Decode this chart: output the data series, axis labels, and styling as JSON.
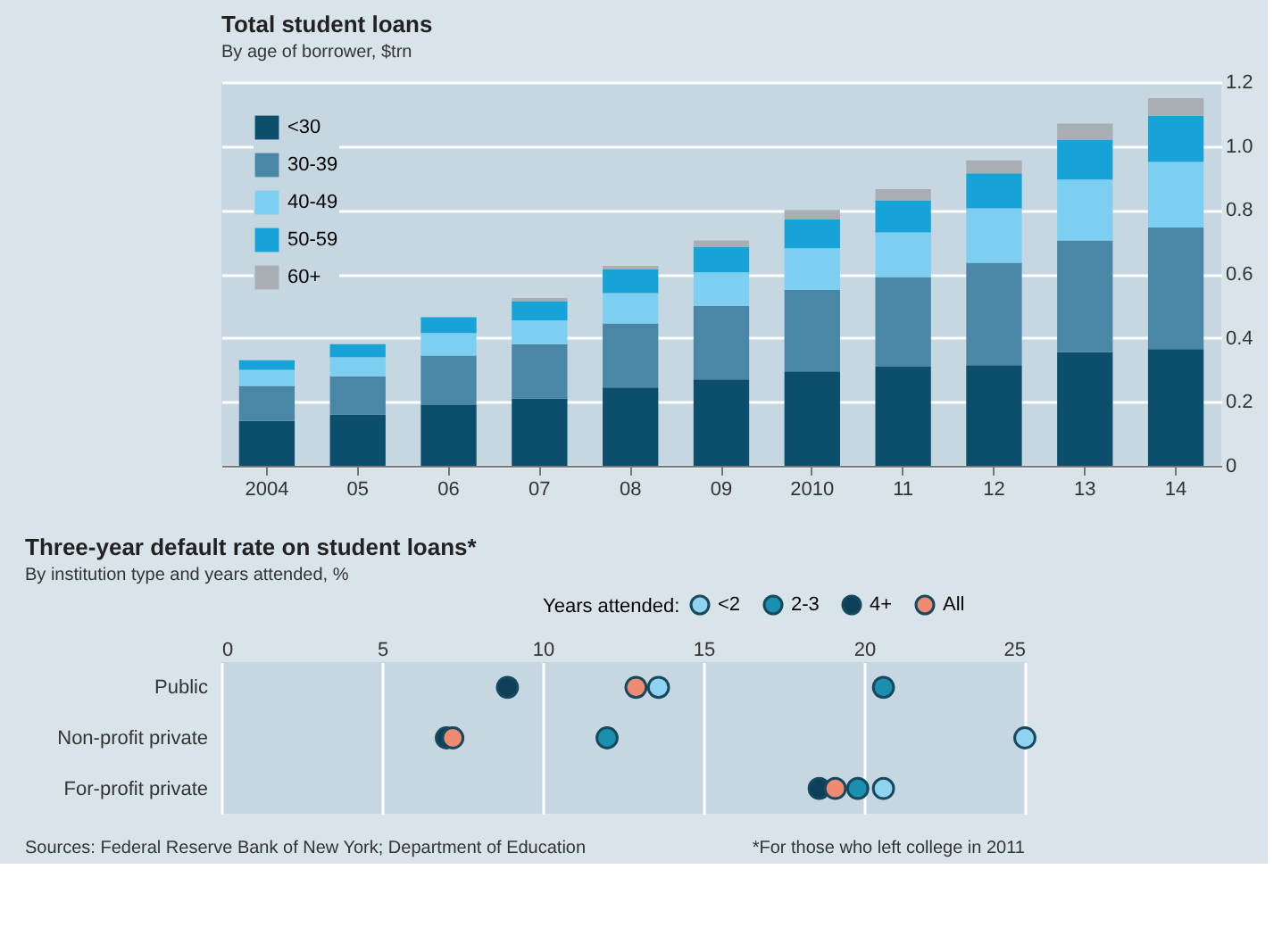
{
  "chart_data": [
    {
      "type": "bar",
      "title": "Total student loans",
      "subtitle": "By age of borrower, $trn",
      "categories": [
        "2004",
        "05",
        "06",
        "07",
        "08",
        "09",
        "2010",
        "11",
        "12",
        "13",
        "14"
      ],
      "stacked": true,
      "series": [
        {
          "name": "<30",
          "color": "#0b4f6c",
          "values": [
            0.14,
            0.16,
            0.19,
            0.21,
            0.245,
            0.27,
            0.295,
            0.31,
            0.315,
            0.355,
            0.365
          ]
        },
        {
          "name": "30-39",
          "color": "#4a87a6",
          "values": [
            0.11,
            0.12,
            0.155,
            0.17,
            0.2,
            0.23,
            0.255,
            0.28,
            0.32,
            0.35,
            0.38
          ]
        },
        {
          "name": "40-49",
          "color": "#7ccff0",
          "values": [
            0.05,
            0.06,
            0.07,
            0.075,
            0.095,
            0.105,
            0.13,
            0.14,
            0.17,
            0.19,
            0.205
          ]
        },
        {
          "name": "50-59",
          "color": "#17a3d8",
          "values": [
            0.03,
            0.04,
            0.05,
            0.06,
            0.075,
            0.08,
            0.09,
            0.1,
            0.11,
            0.125,
            0.145
          ]
        },
        {
          "name": "60+",
          "color": "#a9aeb5",
          "values": [
            null,
            null,
            null,
            0.01,
            0.01,
            0.02,
            0.03,
            0.035,
            0.04,
            0.05,
            0.055
          ]
        }
      ],
      "ylim": [
        0,
        1.2
      ],
      "yticks": [
        0,
        0.2,
        0.4,
        0.6,
        0.8,
        {
          "value": 1,
          "label": "1.0"
        },
        1.2
      ],
      "grid": "y",
      "legend": "top left"
    },
    {
      "type": "scatter",
      "orientation": "horizontal",
      "title": "Three-year default rate on student loans*",
      "subtitle": "By institution type and years attended, %",
      "categories": [
        "Public",
        "Non-profit private",
        "For-profit private"
      ],
      "legend_title": "Years attended:",
      "marker": "circle",
      "series": [
        {
          "name": "<2",
          "color": "#8fd3f0",
          "values": [
            13.6,
            25.0,
            20.6
          ]
        },
        {
          "name": "2-3",
          "color": "#1b8fb0",
          "values": [
            20.6,
            12.0,
            19.8
          ]
        },
        {
          "name": "4+",
          "color": "#0b4058",
          "values": [
            8.9,
            7.0,
            18.6
          ]
        },
        {
          "name": "All",
          "color": "#f08a70",
          "values": [
            12.9,
            7.2,
            19.1
          ]
        }
      ],
      "xlim": [
        0,
        25
      ],
      "xticks": [
        0,
        5,
        10,
        15,
        20,
        25
      ],
      "grid": "x",
      "legend": "top right",
      "annotations": [
        "Sources: Federal Reserve Bank of New York; Department of Education",
        "*For those who left college in 2011"
      ]
    }
  ]
}
